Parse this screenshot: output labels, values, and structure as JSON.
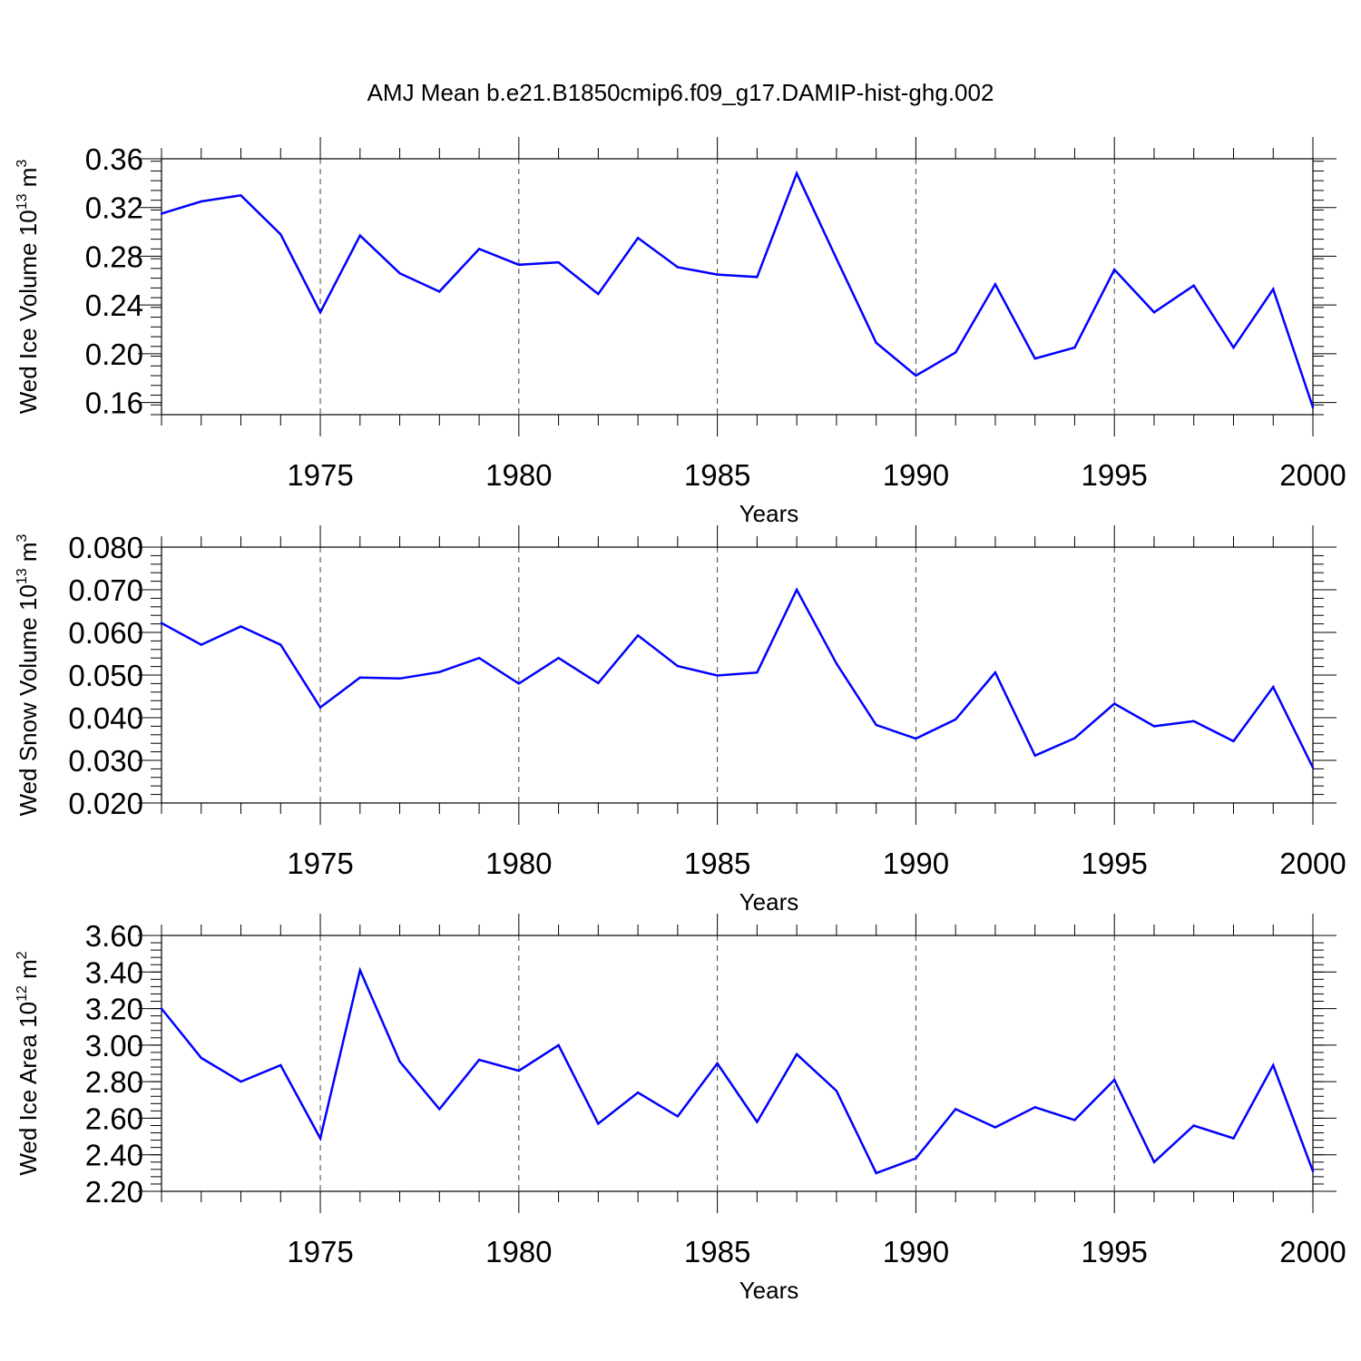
{
  "title": "AMJ Mean b.e21.B1850cmip6.f09_g17.DAMIP-hist-ghg.002",
  "colors": {
    "line": "#0000ff",
    "axis": "#000000"
  },
  "chart_data": [
    {
      "type": "line",
      "ylabel": {
        "prefix": "Wed Ice Volume 10",
        "exp": "13",
        "unit": " m",
        "unit_exp": "3"
      },
      "xlabel": "Years",
      "xlim": [
        1971,
        2000
      ],
      "ylim": [
        0.15,
        0.36
      ],
      "xticks": [
        1975,
        1980,
        1985,
        1990,
        1995,
        2000
      ],
      "yticks": [
        0.16,
        0.2,
        0.24,
        0.28,
        0.32,
        0.36
      ],
      "ytick_labels": [
        "0.16",
        "0.20",
        "0.24",
        "0.28",
        "0.32",
        "0.36"
      ],
      "y_minor_step": 0.008,
      "grid": "vertical dashed at major x ticks",
      "x": [
        1971,
        1972,
        1973,
        1974,
        1975,
        1976,
        1977,
        1978,
        1979,
        1980,
        1981,
        1982,
        1983,
        1984,
        1985,
        1986,
        1987,
        1988,
        1989,
        1990,
        1991,
        1992,
        1993,
        1994,
        1995,
        1996,
        1997,
        1998,
        1999,
        2000
      ],
      "values": [
        0.315,
        0.325,
        0.33,
        0.298,
        0.234,
        0.297,
        0.266,
        0.251,
        0.286,
        0.273,
        0.275,
        0.249,
        0.295,
        0.271,
        0.265,
        0.263,
        0.348,
        0.278,
        0.209,
        0.182,
        0.201,
        0.257,
        0.196,
        0.205,
        0.269,
        0.234,
        0.256,
        0.205,
        0.253,
        0.156
      ]
    },
    {
      "type": "line",
      "ylabel": {
        "prefix": "Wed Snow Volume 10",
        "exp": "13",
        "unit": " m",
        "unit_exp": "3"
      },
      "xlabel": "Years",
      "xlim": [
        1971,
        2000
      ],
      "ylim": [
        0.02,
        0.08
      ],
      "xticks": [
        1975,
        1980,
        1985,
        1990,
        1995,
        2000
      ],
      "yticks": [
        0.02,
        0.03,
        0.04,
        0.05,
        0.06,
        0.07,
        0.08
      ],
      "ytick_labels": [
        "0.020",
        "0.030",
        "0.040",
        "0.050",
        "0.060",
        "0.070",
        "0.080"
      ],
      "y_minor_step": 0.002,
      "grid": "vertical dashed at major x ticks",
      "x": [
        1971,
        1972,
        1973,
        1974,
        1975,
        1976,
        1977,
        1978,
        1979,
        1980,
        1981,
        1982,
        1983,
        1984,
        1985,
        1986,
        1987,
        1988,
        1989,
        1990,
        1991,
        1992,
        1993,
        1994,
        1995,
        1996,
        1997,
        1998,
        1999,
        2000
      ],
      "values": [
        0.0622,
        0.0571,
        0.0614,
        0.0571,
        0.0424,
        0.0494,
        0.0492,
        0.0507,
        0.054,
        0.048,
        0.054,
        0.0481,
        0.0593,
        0.0521,
        0.0499,
        0.0506,
        0.07,
        0.0527,
        0.0383,
        0.0351,
        0.0396,
        0.0506,
        0.0311,
        0.0352,
        0.0433,
        0.038,
        0.0392,
        0.0345,
        0.0472,
        0.0283
      ]
    },
    {
      "type": "line",
      "ylabel": {
        "prefix": "Wed Ice Area 10",
        "exp": "12",
        "unit": " m",
        "unit_exp": "2"
      },
      "xlabel": "Years",
      "xlim": [
        1971,
        2000
      ],
      "ylim": [
        2.2,
        3.6
      ],
      "xticks": [
        1975,
        1980,
        1985,
        1990,
        1995,
        2000
      ],
      "yticks": [
        2.2,
        2.4,
        2.6,
        2.8,
        3.0,
        3.2,
        3.4,
        3.6
      ],
      "ytick_labels": [
        "2.20",
        "2.40",
        "2.60",
        "2.80",
        "3.00",
        "3.20",
        "3.40",
        "3.60"
      ],
      "y_minor_step": 0.04,
      "grid": "vertical dashed at major x ticks",
      "x": [
        1971,
        1972,
        1973,
        1974,
        1975,
        1976,
        1977,
        1978,
        1979,
        1980,
        1981,
        1982,
        1983,
        1984,
        1985,
        1986,
        1987,
        1988,
        1989,
        1990,
        1991,
        1992,
        1993,
        1994,
        1995,
        1996,
        1997,
        1998,
        1999,
        2000
      ],
      "values": [
        3.2,
        2.93,
        2.8,
        2.89,
        2.49,
        3.41,
        2.91,
        2.65,
        2.92,
        2.86,
        3.0,
        2.57,
        2.74,
        2.61,
        2.9,
        2.58,
        2.95,
        2.75,
        2.3,
        2.38,
        2.65,
        2.55,
        2.66,
        2.59,
        2.81,
        2.36,
        2.56,
        2.49,
        2.89,
        2.31
      ]
    }
  ]
}
